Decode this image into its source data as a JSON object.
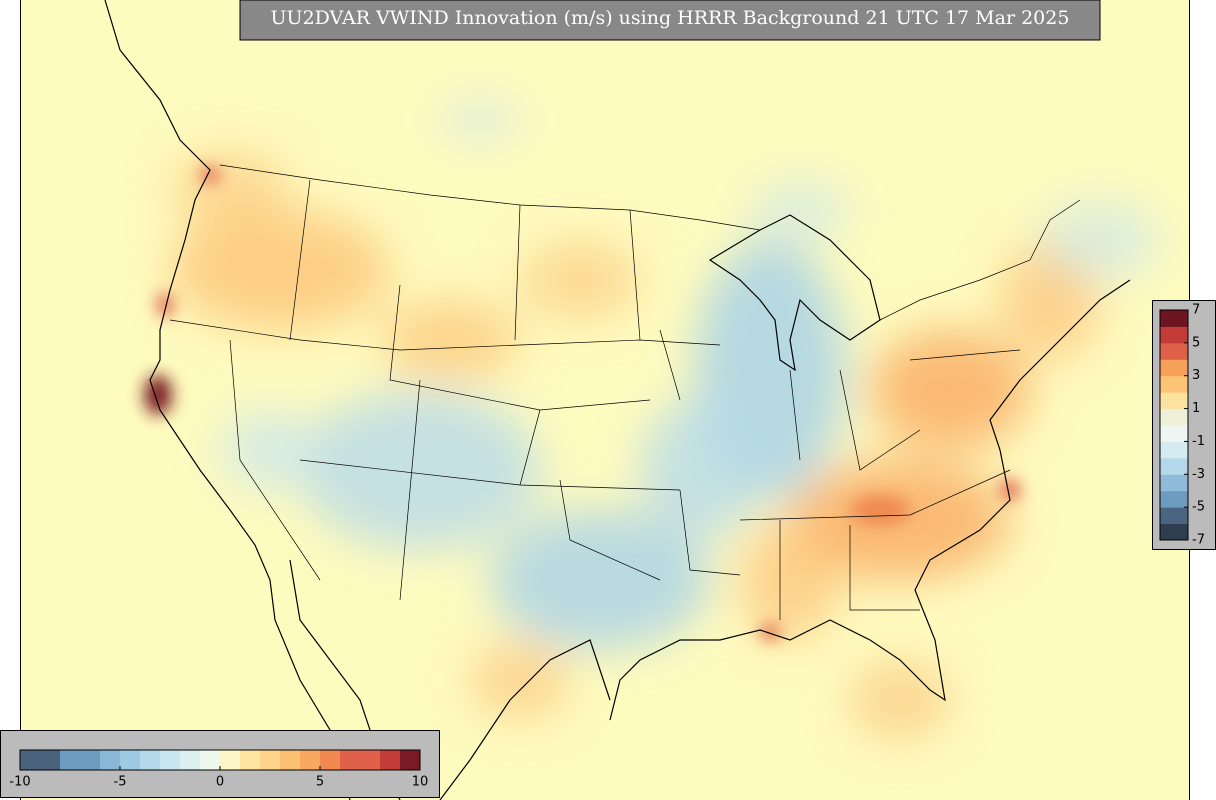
{
  "title": "UU2DVAR VWIND Innovation (m/s) using HRRR Background 21 UTC 17 Mar 2025",
  "colorbars": [
    {
      "range": [
        -10,
        10
      ],
      "ticks": [
        -10,
        -5,
        0,
        5,
        10
      ],
      "colors": [
        "#4b627c",
        "#4b627c",
        "#6e9bc0",
        "#6e9bc0",
        "#89b8d7",
        "#9ecbe3",
        "#b3d9ea",
        "#c7e6ef",
        "#dcf0f1",
        "#eff8ef",
        "#fdf6c6",
        "#fee6a0",
        "#fdd48a",
        "#fcc074",
        "#f9a860",
        "#f08850",
        "#e0614a",
        "#e0614a",
        "#c43c38",
        "#7a1a24"
      ]
    },
    {
      "range": [
        -7,
        7
      ],
      "ticks": [
        7,
        5,
        3,
        1,
        -1,
        -3,
        -5,
        -7
      ],
      "colors": [
        "#2e3e4f",
        "#4b6580",
        "#6e9bc0",
        "#8fbbd8",
        "#b3d8e9",
        "#d4ebf1",
        "#eef6f2",
        "#eef0d8",
        "#fde3a0",
        "#fcc476",
        "#f7a05a",
        "#e0614a",
        "#c43c38",
        "#6d1520"
      ]
    }
  ]
}
